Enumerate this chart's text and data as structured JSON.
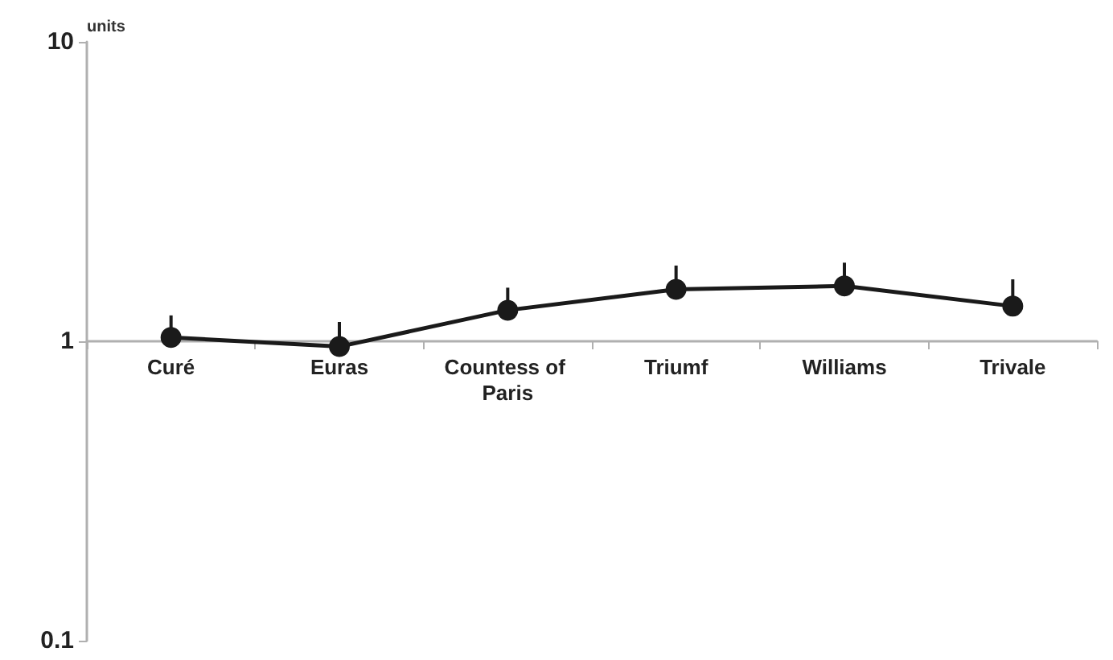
{
  "chart_data": {
    "type": "line",
    "ylabel": "units",
    "categories": [
      "Curé",
      "Euras",
      "Countess of Paris",
      "Triumf",
      "Williams",
      "Trivale"
    ],
    "series": [
      {
        "color": "#1a1a1a",
        "values": [
          1.03,
          0.96,
          1.27,
          1.49,
          1.53,
          1.31
        ],
        "errors": [
          [
            1.03,
            1.22
          ],
          [
            0.96,
            1.16
          ],
          [
            1.27,
            1.51
          ],
          [
            1.49,
            1.79
          ],
          [
            1.53,
            1.83
          ],
          [
            1.31,
            1.61
          ]
        ]
      }
    ],
    "log": "y",
    "ylim": [
      0.1,
      10
    ],
    "yticks": [
      0.1,
      1,
      10
    ],
    "grid": false,
    "marker": "circle",
    "line_style": "solid"
  }
}
